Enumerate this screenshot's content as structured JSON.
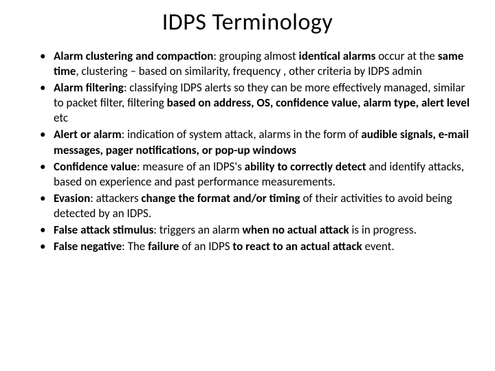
{
  "slide": {
    "title": "IDPS Terminology",
    "bullets": [
      {
        "term": "Alarm clustering and compaction",
        "p1": ": grouping almost ",
        "b1": "identical alarms ",
        "p2": "occur at the ",
        "b2": "same time",
        "p3": ", clustering – based on similarity, frequency , other criteria by IDPS admin"
      },
      {
        "term": "Alarm filtering",
        "p1": ": classifying IDPS alerts so they can be more effectively managed, similar to packet filter, filtering ",
        "b1": "based on address, OS, confidence value, alarm type, alert level ",
        "p2": "etc"
      },
      {
        "term": "Alert or alarm",
        "p1": ": indication of system attack,  alarms in  the form of ",
        "b1": "audible signals, e-mail messages, pager notifications, or pop-up windows"
      },
      {
        "term": "Confidence value",
        "p1": ": measure of an IDPS's ",
        "b1": "ability to correctly detect ",
        "p2": "and identify attacks, based on experience and past performance measurements."
      },
      {
        "term": "Evasion",
        "p1": ": attackers ",
        "b1": "change the format and/or timing ",
        "p2": "of their activities to avoid being detected by an IDPS."
      },
      {
        "term": "False attack stimulus",
        "p1": ": triggers an alarm ",
        "b1": "when no actual attack ",
        "p2": "is in progress."
      },
      {
        "term": "False negative",
        "p1": ": The ",
        "b1": "failure ",
        "p2": "of an IDPS ",
        "b2": "to react to an actual attack ",
        "p3": "event."
      }
    ]
  }
}
